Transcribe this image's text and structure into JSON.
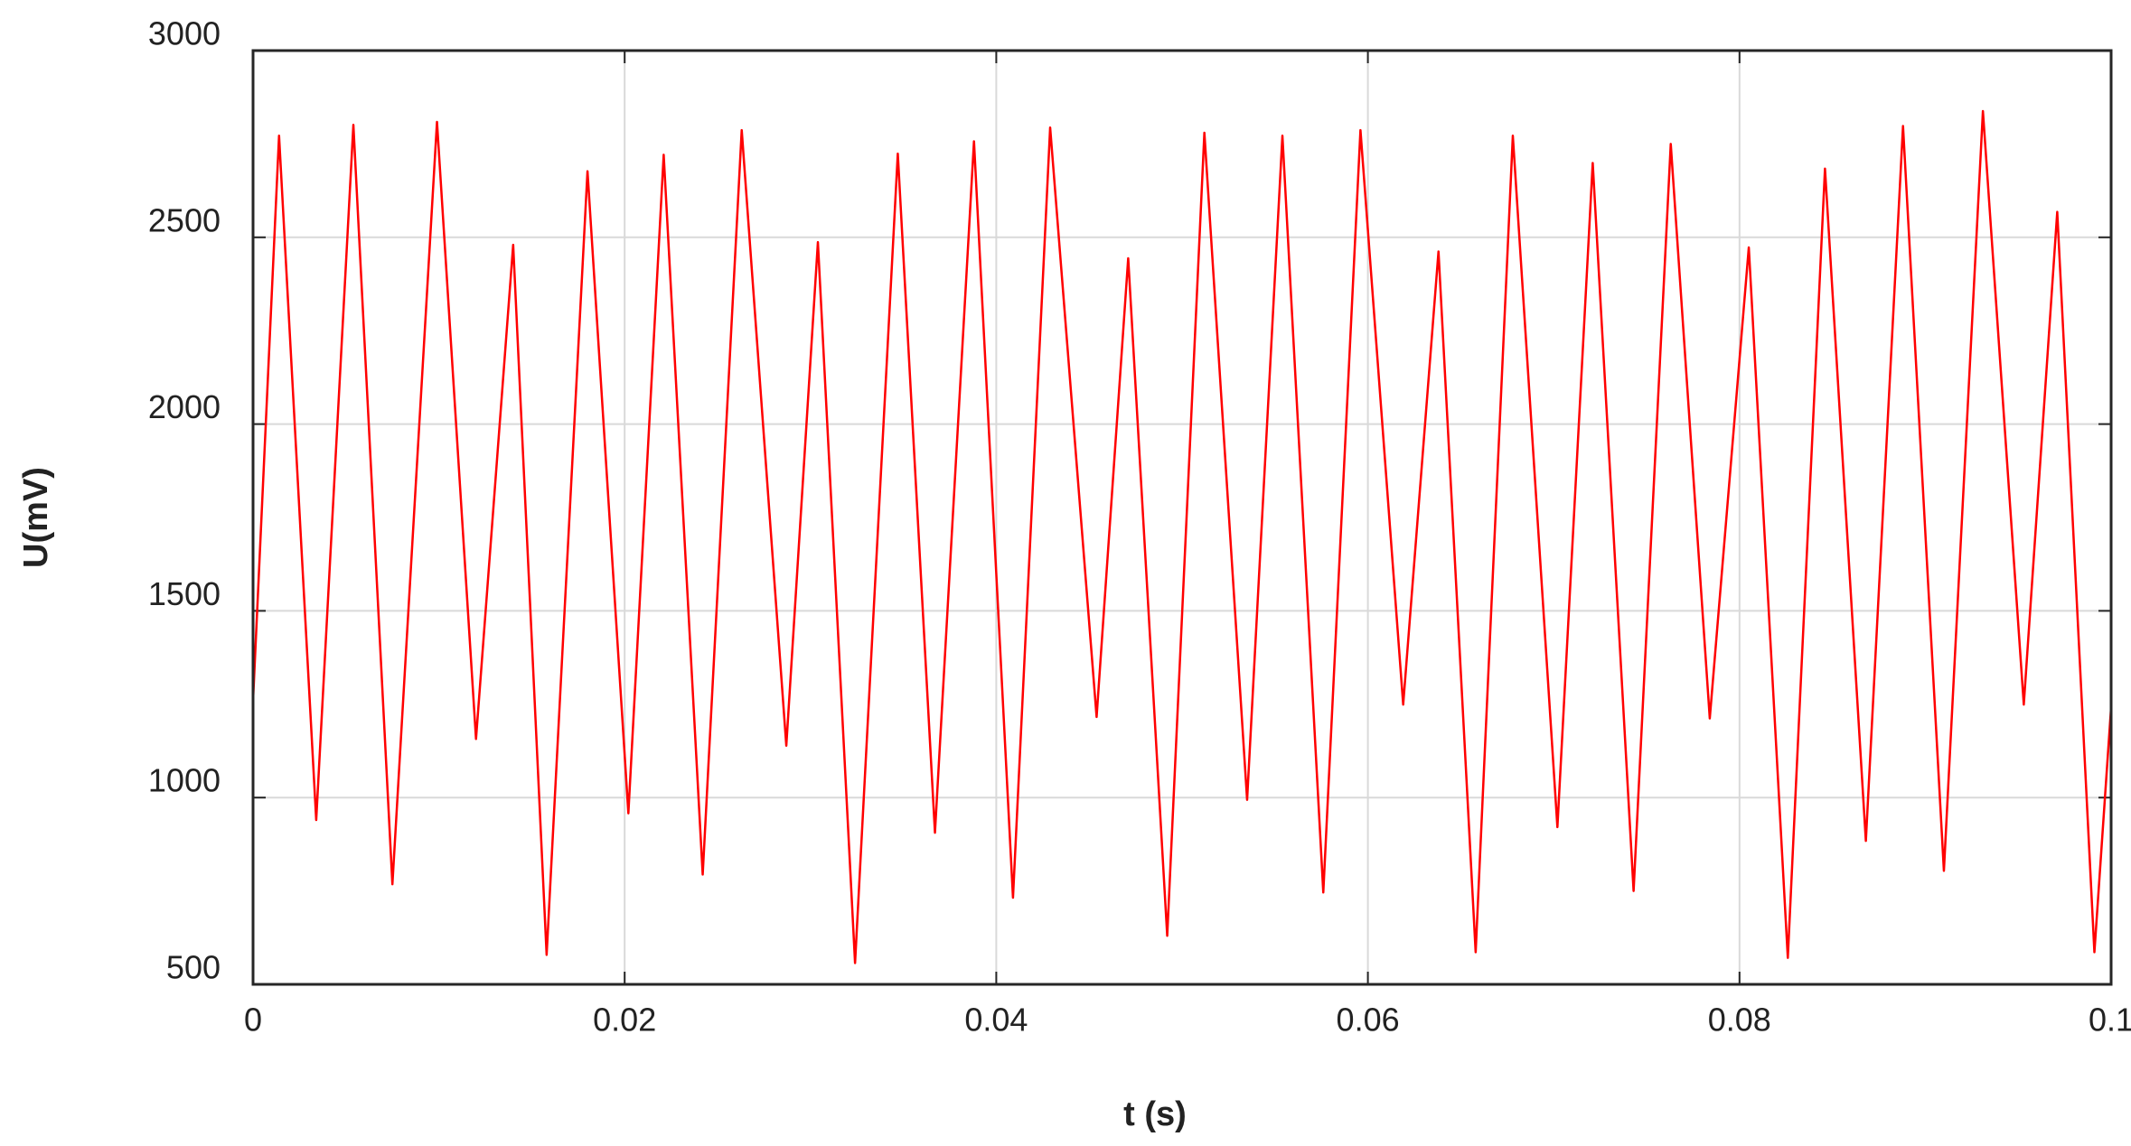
{
  "chart_data": {
    "type": "line",
    "x_label": "t (s)",
    "y_label": "U(mV)",
    "xlim": [
      0,
      0.1
    ],
    "ylim": [
      500,
      3000
    ],
    "xticks": [
      0,
      0.02,
      0.04,
      0.06,
      0.08,
      0.1
    ],
    "yticks": [
      500,
      1000,
      1500,
      2000,
      2500,
      3000
    ],
    "grid": true,
    "x": [
      0,
      0.0014,
      0.0034,
      0.0054,
      0.0075,
      0.0099,
      0.012,
      0.014,
      0.0158,
      0.018,
      0.0202,
      0.0221,
      0.0242,
      0.0263,
      0.0287,
      0.0304,
      0.0324,
      0.0347,
      0.0367,
      0.0388,
      0.0409,
      0.0429,
      0.0454,
      0.0471,
      0.0492,
      0.0512,
      0.0535,
      0.0554,
      0.0576,
      0.0596,
      0.0619,
      0.0638,
      0.0658,
      0.0678,
      0.0702,
      0.0721,
      0.0743,
      0.0763,
      0.0784,
      0.0805,
      0.0826,
      0.0846,
      0.0868,
      0.0888,
      0.091,
      0.0931,
      0.0953,
      0.0971,
      0.0991,
      0.1
    ],
    "series": [
      {
        "color": "#ff0000",
        "values": [
          1260,
          2772,
          940,
          2801,
          768,
          2809,
          1157,
          2480,
          579,
          2677,
          958,
          2721,
          794,
          2787,
          1139,
          2487,
          557,
          2724,
          906,
          2757,
          732,
          2794,
          1216,
          2444,
          630,
          2780,
          994,
          2772,
          746,
          2787,
          1249,
          2462,
          586,
          2772,
          921,
          2699,
          750,
          2750,
          1212,
          2473,
          571,
          2684,
          884,
          2798,
          804,
          2838,
          1249,
          2568,
          586,
          1242
        ]
      }
    ]
  }
}
